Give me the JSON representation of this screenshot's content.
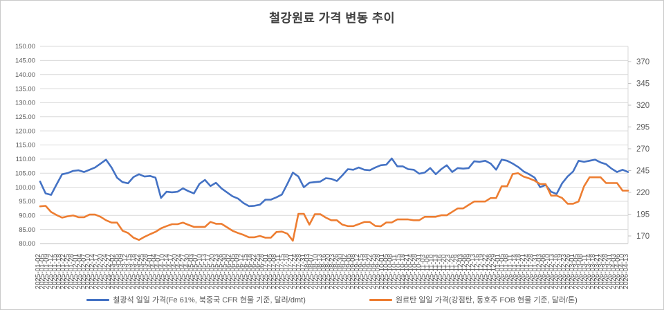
{
  "chart_data": {
    "type": "line",
    "title": "철강원료 가격 변동 추이",
    "legend_position": "bottom",
    "grid": true,
    "colors": {
      "gridline": "#d9d9d9",
      "axis_line": "#bfbfbf",
      "axis_text": "#595959",
      "title_text": "#404040"
    },
    "left_axis": {
      "min": 80,
      "max": 150,
      "step": 5,
      "tick_labels": [
        "150.00",
        "145.00",
        "140.00",
        "135.00",
        "130.00",
        "125.00",
        "120.00",
        "115.00",
        "110.00",
        "105.00",
        "100.00",
        "95.00",
        "90.00",
        "85.00",
        "80.00"
      ]
    },
    "right_axis": {
      "min": 170,
      "max": 370,
      "step": 25,
      "tick_labels": [
        "370",
        "345",
        "320",
        "295",
        "270",
        "245",
        "220",
        "195",
        "170"
      ]
    },
    "x_axis": {
      "first_label": "2025-01-02",
      "last_label": "2026-04-13",
      "label_format": "YYYY-MM-DD",
      "label_rotation_deg": 90,
      "label_count": 143
    },
    "series": [
      {
        "name": "철광석 일일 가격(Fe 61%, 북중국 CFR 현물 기준, 달러/dmt)",
        "axis": "left",
        "color": "#4472C4",
        "values": [
          102,
          97.8,
          97.3,
          101,
          104.6,
          105,
          105.8,
          106,
          105.4,
          106.2,
          107,
          108.4,
          109.8,
          107,
          103.4,
          101.8,
          101.4,
          103.6,
          104.6,
          103.8,
          104,
          103.4,
          96.2,
          98.4,
          98.2,
          98.4,
          99.6,
          98.6,
          97.8,
          101.2,
          102.6,
          100.4,
          101.6,
          99.6,
          98.2,
          96.8,
          96,
          94.4,
          93.3,
          93.4,
          93.8,
          95.6,
          95.6,
          96.4,
          97.4,
          101.2,
          105.2,
          103.8,
          100,
          101.6,
          101.8,
          102,
          103.2,
          103,
          102.2,
          104.2,
          106.4,
          106.2,
          107,
          106.2,
          106,
          107,
          107.8,
          108,
          110.2,
          107.4,
          107.4,
          106.4,
          106.2,
          104.8,
          105.2,
          106.8,
          104.6,
          106.4,
          107.8,
          105.4,
          106.8,
          106.6,
          106.8,
          109.2,
          109,
          109.4,
          108.4,
          106.2,
          109.8,
          109.4,
          108.4,
          107.2,
          105.6,
          104.6,
          103.4,
          100,
          100.8,
          98.4,
          97.6,
          101.4,
          103.8,
          105.6,
          109.4,
          109,
          109.4,
          109.8,
          108.8,
          108.2,
          106.6,
          105.4,
          106.2,
          105.4
        ]
      },
      {
        "name": "원료탄 일일 가격(강점탄, 동호주 FOB 현물 기준, 달러/톤)",
        "axis": "right",
        "color": "#ED7D31",
        "values": [
          204,
          204.5,
          197.5,
          194,
          191,
          192.5,
          193.5,
          191.5,
          191.5,
          194.5,
          194.5,
          192,
          188,
          185.3,
          185.3,
          176,
          173.4,
          168,
          165.4,
          169,
          172,
          174.7,
          178.7,
          181.3,
          183.5,
          183.5,
          185.3,
          182.7,
          180.4,
          180.4,
          180.4,
          186.1,
          184,
          184,
          180,
          176,
          173.4,
          171.3,
          168.5,
          168.5,
          170,
          168,
          168,
          174.5,
          175,
          172.6,
          164.5,
          195.4,
          195.4,
          183,
          195,
          195,
          191,
          188,
          188,
          183,
          181.3,
          181.3,
          183.6,
          186,
          186,
          181.5,
          181,
          185.5,
          185.5,
          189,
          189,
          189,
          188,
          188,
          192,
          192,
          192,
          193.7,
          193.7,
          197.6,
          201.6,
          201.6,
          205.6,
          209.5,
          209.5,
          209.5,
          213.5,
          213.5,
          227,
          227,
          241,
          242,
          238,
          236,
          233.4,
          229.5,
          229.5,
          216.3,
          216.3,
          213.6,
          207,
          207,
          209.5,
          227,
          237.3,
          237.3,
          237.3,
          230.7,
          230.7,
          230.7,
          222,
          222
        ]
      }
    ]
  }
}
